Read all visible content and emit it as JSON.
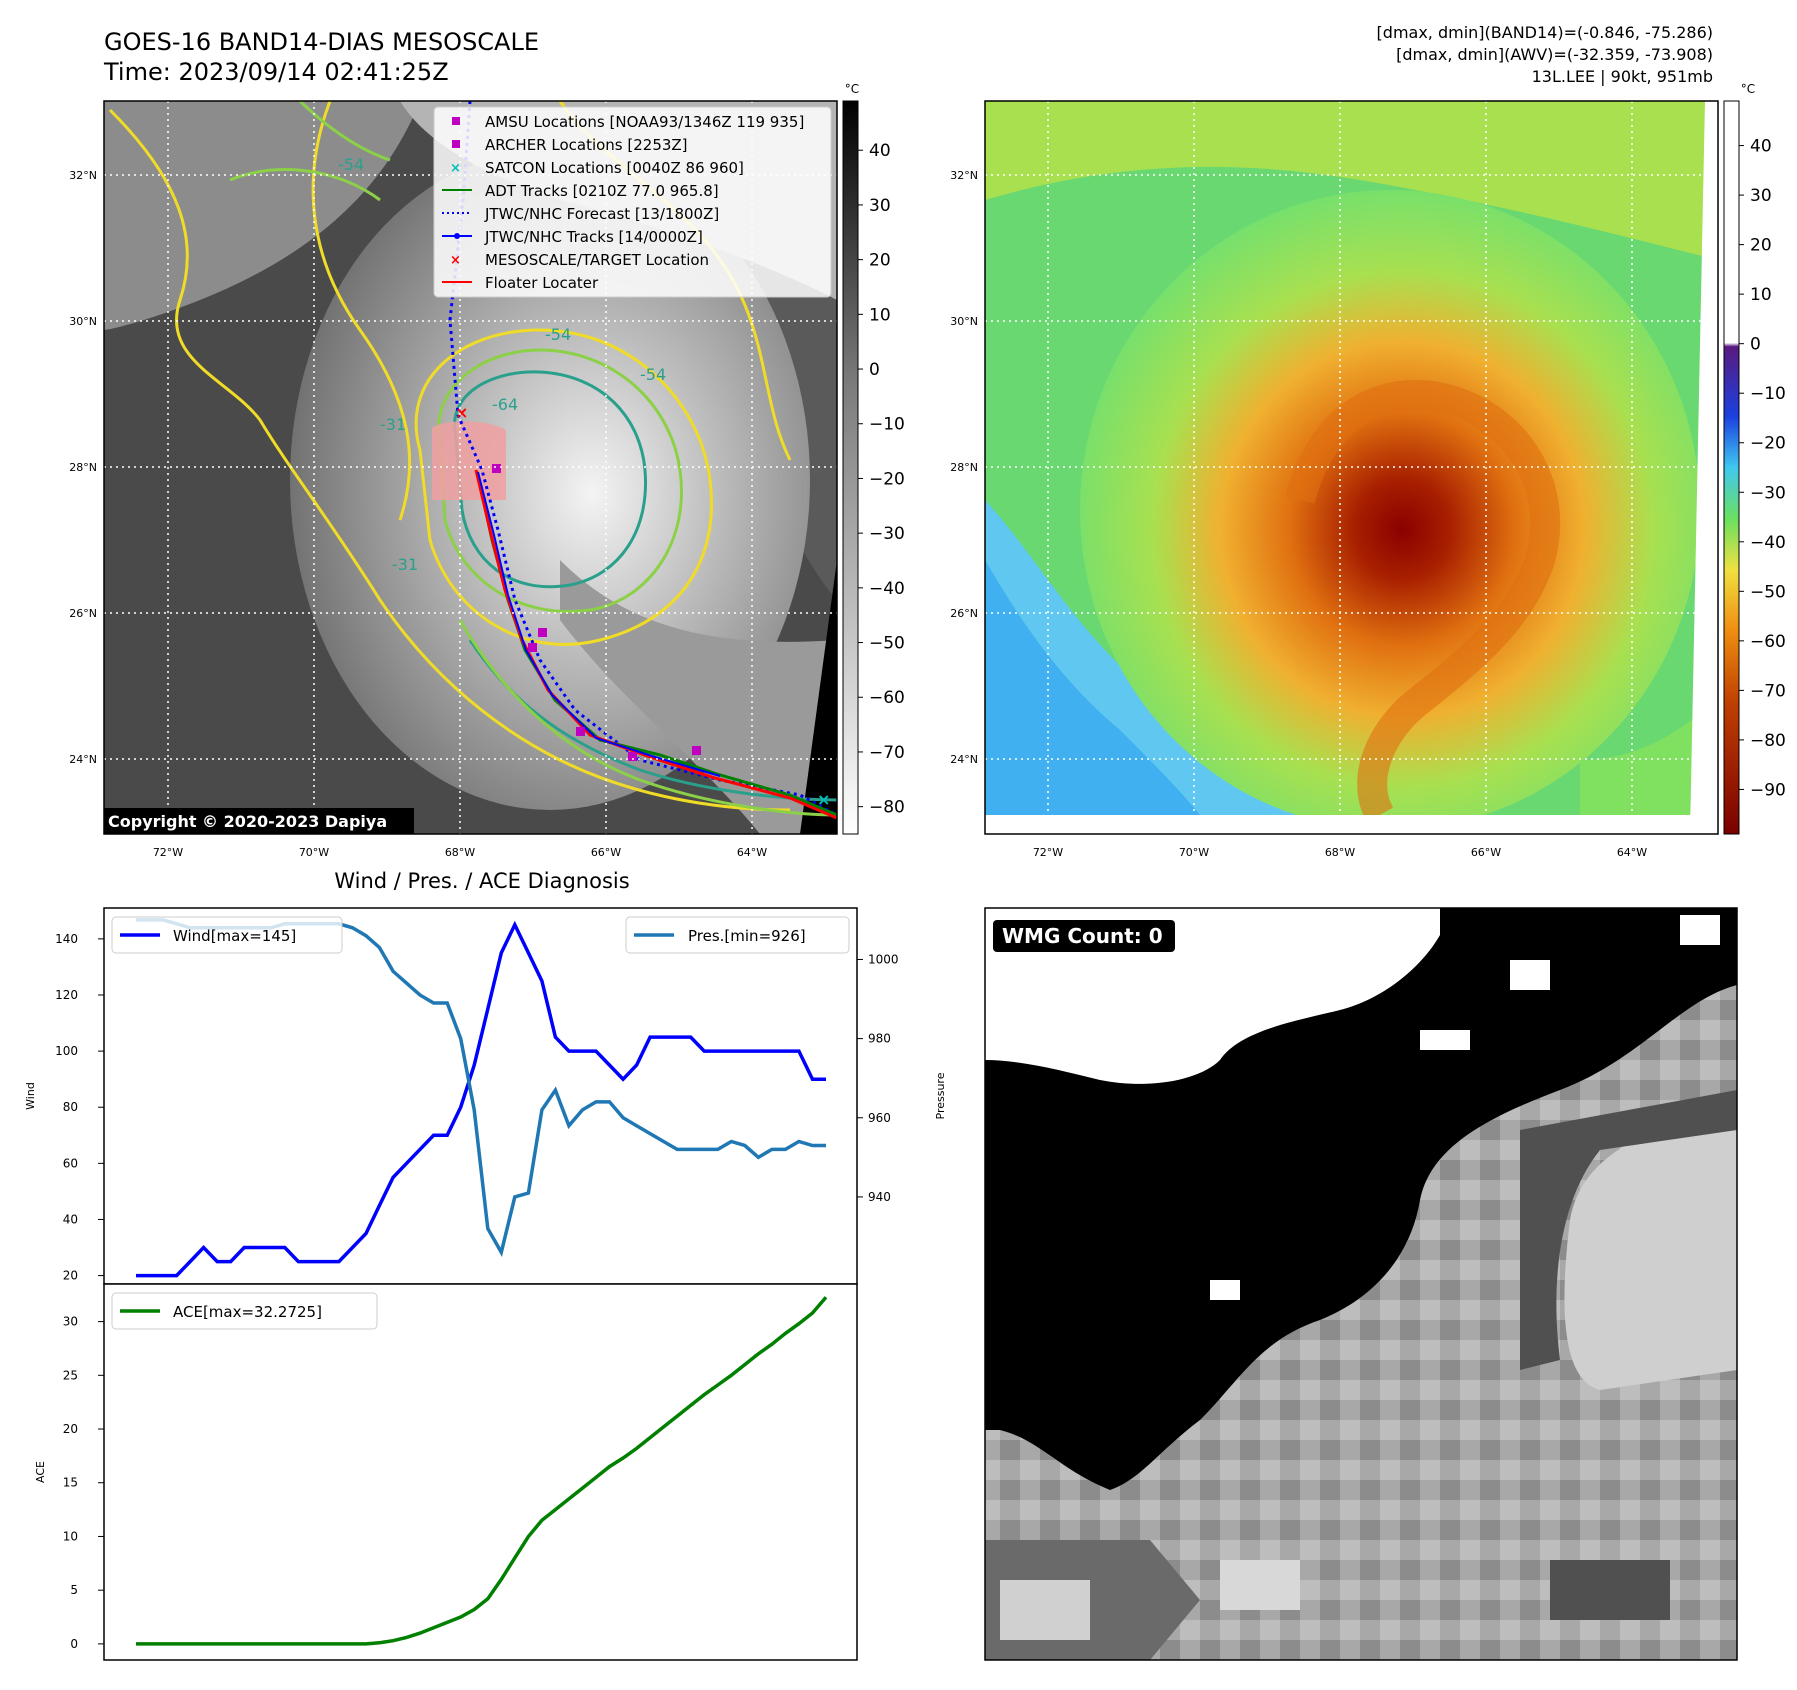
{
  "header": {
    "title_line1": "GOES-16 BAND14-DIAS MESOSCALE",
    "title_line2": "Time: 2023/09/14 02:41:25Z",
    "stats_line1": "[dmax, dmin](BAND14)=(-0.846, -75.286)",
    "stats_line2": "[dmax, dmin](AWV)=(-32.359, -73.908)",
    "stats_line3": "13L.LEE | 90kt, 951mb"
  },
  "map_left": {
    "copyright": "Copyright © 2020-2023 Dapiya",
    "colorbar_unit": "°C",
    "colorbar_ticks": [
      "40",
      "30",
      "20",
      "10",
      "0",
      "−10",
      "−20",
      "−30",
      "−40",
      "−50",
      "−60",
      "−70",
      "−80"
    ],
    "lat_labels": [
      "32°N",
      "30°N",
      "28°N",
      "26°N",
      "24°N"
    ],
    "lon_labels": [
      "72°W",
      "70°W",
      "68°W",
      "66°W",
      "64°W"
    ],
    "contour_labels": [
      "-54",
      "-54",
      "-54",
      "-64",
      "-31",
      "-31"
    ],
    "legend": [
      {
        "label": "AMSU Locations [NOAA93/1346Z 119 935]",
        "marker": "square",
        "color": "#c000c0"
      },
      {
        "label": "ARCHER Locations [2253Z]",
        "marker": "square",
        "color": "#c000c0"
      },
      {
        "label": "SATCON Locations [0040Z 86 960]",
        "marker": "x",
        "color": "#00c0c0"
      },
      {
        "label": "ADT Tracks [0210Z 77.0 965.8]",
        "marker": "line",
        "color": "#008000"
      },
      {
        "label": "JTWC/NHC Forecast [13/1800Z]",
        "marker": "dotted",
        "color": "#0000ff"
      },
      {
        "label": "JTWC/NHC Tracks [14/0000Z]",
        "marker": "line-dot",
        "color": "#0000ff"
      },
      {
        "label": "MESOSCALE/TARGET Location",
        "marker": "x",
        "color": "#ff0000"
      },
      {
        "label": "Floater Locater",
        "marker": "line",
        "color": "#ff0000"
      }
    ]
  },
  "map_right": {
    "colorbar_unit": "°C",
    "colorbar_ticks": [
      "40",
      "30",
      "20",
      "10",
      "0",
      "−10",
      "−20",
      "−30",
      "−40",
      "−50",
      "−60",
      "−70",
      "−80",
      "−90"
    ],
    "lat_labels": [
      "32°N",
      "30°N",
      "28°N",
      "26°N",
      "24°N"
    ],
    "lon_labels": [
      "72°W",
      "70°W",
      "68°W",
      "66°W",
      "64°W"
    ]
  },
  "diag_title": "Wind / Pres. / ACE Diagnosis",
  "wmg": {
    "label": "WMG Count: 0"
  },
  "colors": {
    "wind": "#0000ff",
    "pressure": "#1f77b4",
    "ace": "#008000",
    "floater": "#ff0000"
  },
  "chart_data": [
    {
      "type": "line",
      "title": "Wind / Pres. / ACE Diagnosis",
      "ylabel": "Wind",
      "ylabel_right": "Pressure",
      "ylim": [
        17,
        151
      ],
      "ylim_right": [
        918,
        1013
      ],
      "yticks": [
        20,
        40,
        60,
        80,
        100,
        120,
        140
      ],
      "yticks_right": [
        940,
        960,
        980,
        1000
      ],
      "legend_left": "Wind[max=145]",
      "legend_right": "Pres.[min=926]",
      "series": [
        {
          "name": "Wind[max=145]",
          "axis": "left",
          "values": [
            20,
            20,
            20,
            20,
            25,
            30,
            25,
            25,
            30,
            30,
            30,
            30,
            25,
            25,
            25,
            25,
            30,
            35,
            45,
            55,
            60,
            65,
            70,
            70,
            80,
            95,
            115,
            135,
            145,
            135,
            125,
            105,
            100,
            100,
            100,
            95,
            90,
            95,
            105,
            105,
            105,
            105,
            100,
            100,
            100,
            100,
            100,
            100,
            100,
            100,
            90,
            90
          ]
        },
        {
          "name": "Pres.[min=926]",
          "axis": "right",
          "values": [
            1010,
            1010,
            1010,
            1009,
            1008,
            1008,
            1008,
            1008,
            1008,
            1008,
            1008,
            1009,
            1009,
            1009,
            1009,
            1009,
            1008,
            1006,
            1003,
            997,
            994,
            991,
            989,
            989,
            980,
            962,
            932,
            926,
            940,
            941,
            962,
            967,
            958,
            962,
            964,
            964,
            960,
            958,
            956,
            954,
            952,
            952,
            952,
            952,
            954,
            953,
            950,
            952,
            952,
            954,
            953,
            953
          ]
        }
      ]
    },
    {
      "type": "line",
      "ylabel": "ACE",
      "ylim": [
        -1.5,
        33.5
      ],
      "yticks": [
        0,
        5,
        10,
        15,
        20,
        25,
        30
      ],
      "legend": "ACE[max=32.2725]",
      "series": [
        {
          "name": "ACE[max=32.2725]",
          "values": [
            0,
            0,
            0,
            0,
            0,
            0,
            0,
            0,
            0,
            0,
            0,
            0,
            0,
            0,
            0,
            0,
            0,
            0,
            0.1,
            0.3,
            0.6,
            1.0,
            1.5,
            2.0,
            2.5,
            3.2,
            4.2,
            6.0,
            8.0,
            10.0,
            11.5,
            12.5,
            13.5,
            14.5,
            15.5,
            16.5,
            17.3,
            18.2,
            19.2,
            20.2,
            21.2,
            22.2,
            23.2,
            24.1,
            25.0,
            26.0,
            27.0,
            27.9,
            28.9,
            29.8,
            30.8,
            32.27
          ]
        }
      ]
    }
  ]
}
